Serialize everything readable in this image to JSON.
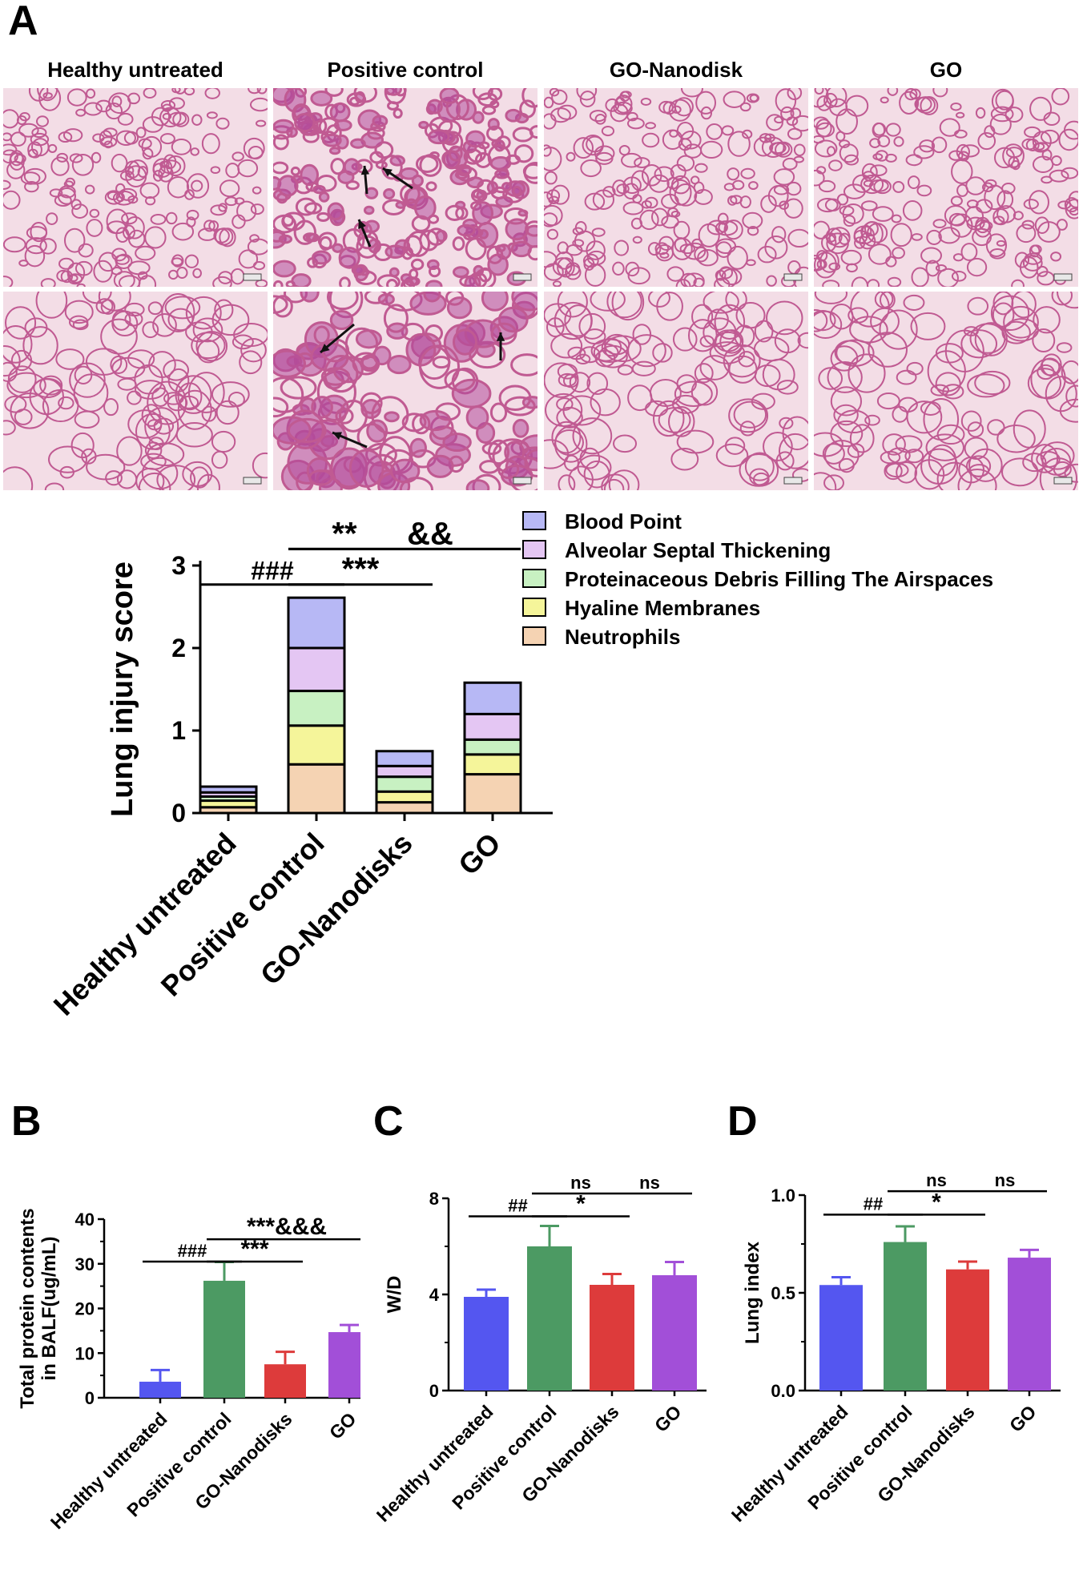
{
  "panel_a": {
    "letter": "A",
    "micrograph_labels": [
      "Healthy untreated",
      "Positive control",
      "GO-Nanodisk",
      "GO"
    ],
    "arrow_note": "arrows"
  },
  "panel_b": {
    "letter": "B"
  },
  "panel_c": {
    "letter": "C"
  },
  "panel_d": {
    "letter": "D"
  },
  "colors": {
    "blood_point": "#b7b8f5",
    "alveolar": "#e4c6f3",
    "debris": "#c8f1c2",
    "hyaline": "#f5f59a",
    "neutrophils": "#f5d3b3",
    "healthy_bar": "#5456f0",
    "positive_bar": "#4c9a63",
    "nanodisk_bar": "#dd3b3b",
    "go_bar": "#a24fd8",
    "tissue_bg": "#f3dde6",
    "tissue_line": "#c05a92",
    "tissue_dense": "#b24a9a"
  },
  "chart_data": [
    {
      "id": "lung-injury",
      "type": "bar",
      "stacked": true,
      "categories": [
        "Healthy untreated",
        "Positive control",
        "GO-Nanodisks",
        "GO"
      ],
      "ylabel": "Lung injury score",
      "ylim": [
        0,
        3
      ],
      "yticks": [
        "0",
        "1",
        "2",
        "3"
      ],
      "legend": [
        "Blood Point",
        "Alveolar Septal Thickening",
        "Proteinaceous Debris Filling The Airspaces",
        "Hyaline Membranes",
        "Neutrophils"
      ],
      "legend_position": "top-right",
      "series": [
        {
          "name": "Neutrophils",
          "values": [
            0.07,
            0.59,
            0.13,
            0.47
          ]
        },
        {
          "name": "Hyaline Membranes",
          "values": [
            0.08,
            0.47,
            0.13,
            0.24
          ]
        },
        {
          "name": "Proteinaceous Debris Filling The Airspaces",
          "values": [
            0.05,
            0.42,
            0.18,
            0.18
          ]
        },
        {
          "name": "Alveolar Septal Thickening",
          "values": [
            0.05,
            0.52,
            0.13,
            0.31
          ]
        },
        {
          "name": "Blood Point",
          "values": [
            0.07,
            0.61,
            0.18,
            0.38
          ]
        }
      ],
      "annotations": [
        {
          "text": "###",
          "from": 0,
          "to": 1,
          "level": 2.77
        },
        {
          "text": "***",
          "from": 1,
          "to": 2,
          "level": 2.77
        },
        {
          "text": "**",
          "from": 1,
          "to": 3,
          "level": 3.2
        },
        {
          "text": "&&",
          "from": 1,
          "to": 3,
          "level": 3.2
        }
      ]
    },
    {
      "id": "protein",
      "type": "bar",
      "categories": [
        "Healthy untreated",
        "Positive control",
        "GO-Nanodisks",
        "GO"
      ],
      "values": [
        3.6,
        26.2,
        7.5,
        14.7
      ],
      "errors": [
        2.6,
        4.2,
        2.8,
        1.6
      ],
      "ylabel": "Total protein contents in BALF(ug/mL)",
      "ylabel_lines": [
        "Total protein contents",
        "in BALF(ug/mL)"
      ],
      "ylim": [
        0,
        40
      ],
      "yticks": [
        "0",
        "10",
        "20",
        "30",
        "40"
      ],
      "annotations": [
        {
          "text": "###",
          "from": 0,
          "to": 1,
          "level": 30.5
        },
        {
          "text": "***",
          "from": 1,
          "to": 2,
          "level": 30.5
        },
        {
          "text": "***&&&",
          "from": 1,
          "to": 3,
          "level": 35.5
        }
      ]
    },
    {
      "id": "wd",
      "type": "bar",
      "categories": [
        "Healthy untreated",
        "Positive control",
        "GO-Nanodisks",
        "GO"
      ],
      "values": [
        3.9,
        6.0,
        4.4,
        4.8
      ],
      "errors": [
        0.3,
        0.85,
        0.45,
        0.55
      ],
      "ylabel": "W/D",
      "ylim": [
        0,
        8
      ],
      "yticks": [
        "0",
        "4",
        "8"
      ],
      "annotations": [
        {
          "text": "##",
          "from": 0,
          "to": 1,
          "level": 7.25
        },
        {
          "text": "*",
          "from": 1,
          "to": 2,
          "level": 7.25
        },
        {
          "text": "ns",
          "from": 1,
          "to": 2,
          "level": 8.2
        },
        {
          "text": "ns",
          "from": 2,
          "to": 3,
          "level": 8.2
        }
      ]
    },
    {
      "id": "lung-index",
      "type": "bar",
      "categories": [
        "Healthy untreated",
        "Positive control",
        "GO-Nanodisks",
        "GO"
      ],
      "values": [
        0.54,
        0.76,
        0.62,
        0.68
      ],
      "errors": [
        0.04,
        0.08,
        0.04,
        0.04
      ],
      "ylabel": "Lung index",
      "ylim": [
        0,
        1
      ],
      "yticks": [
        "0.0",
        "0.5",
        "1.0"
      ],
      "annotations": [
        {
          "text": "##",
          "from": 0,
          "to": 1,
          "level": 0.9
        },
        {
          "text": "*",
          "from": 1,
          "to": 2,
          "level": 0.9
        },
        {
          "text": "ns",
          "from": 1,
          "to": 2,
          "level": 1.02
        },
        {
          "text": "ns",
          "from": 2,
          "to": 3,
          "level": 1.02
        }
      ]
    }
  ]
}
